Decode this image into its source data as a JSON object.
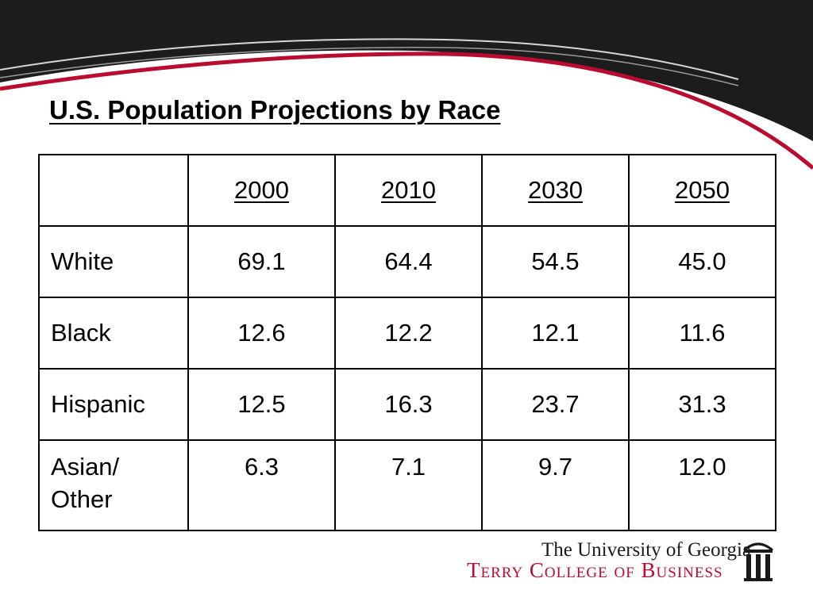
{
  "title": "U.S. Population Projections by Race",
  "table": {
    "header": [
      "",
      "2000",
      "2010",
      "2030",
      "2050"
    ],
    "rows": [
      {
        "label": "White",
        "values": [
          "69.1",
          "64.4",
          "54.5",
          "45.0"
        ]
      },
      {
        "label": "Black",
        "values": [
          "12.6",
          "12.2",
          "12.1",
          "11.6"
        ]
      },
      {
        "label": "Hispanic",
        "values": [
          "12.5",
          "16.3",
          "23.7",
          "31.3"
        ]
      },
      {
        "label_lines": [
          "Asian/",
          "Other"
        ],
        "values": [
          "6.3",
          "7.1",
          "9.7",
          "12.0"
        ]
      }
    ]
  },
  "footer": {
    "university": "The University of Georgia",
    "college": "Terry College of Business",
    "logo_icon": "arch-icon"
  },
  "colors": {
    "header_dark": "#1c1c1c",
    "accent_red": "#ba0c2f",
    "swoosh_light": "#cfcfcf"
  }
}
